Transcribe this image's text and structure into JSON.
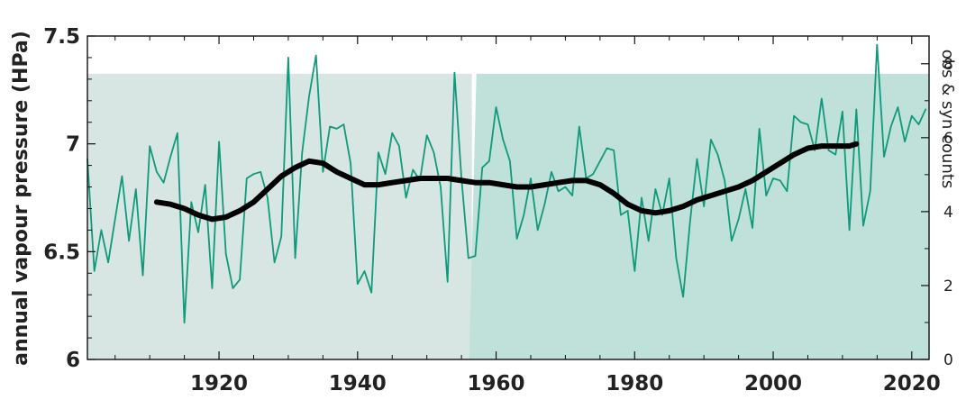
{
  "chart_data": {
    "type": "line",
    "xlabel": "",
    "ylabel": "annual vapour pressure (HPa)",
    "y2label": "obs & syn counts",
    "xlim": [
      1901,
      2022.5
    ],
    "ylim": [
      6,
      7.5
    ],
    "y2lim": [
      0,
      8.75
    ],
    "x_ticks": [
      1920,
      1940,
      1960,
      1980,
      2000,
      2020
    ],
    "y_ticks": [
      6,
      6.5,
      7,
      7.5
    ],
    "y_tick_labels": [
      "6",
      "6.5",
      "7",
      "7.5"
    ],
    "y2_ticks": [
      0,
      2,
      4,
      6,
      8
    ],
    "grid": false,
    "colors": {
      "annual": "#0f9a7b",
      "smooth": "#000000",
      "counts_early": "#d7e5e3",
      "counts_late": "#c0e0da"
    },
    "series": [
      {
        "name": "",
        "style": "thin-line",
        "x": [
          1901,
          1902,
          1903,
          1904,
          1905,
          1906,
          1907,
          1908,
          1909,
          1910,
          1911,
          1912,
          1913,
          1914,
          1915,
          1916,
          1917,
          1918,
          1919,
          1920,
          1921,
          1922,
          1923,
          1924,
          1925,
          1926,
          1927,
          1928,
          1929,
          1930,
          1931,
          1932,
          1933,
          1934,
          1935,
          1936,
          1937,
          1938,
          1939,
          1940,
          1941,
          1942,
          1943,
          1944,
          1945,
          1946,
          1947,
          1948,
          1949,
          1950,
          1951,
          1952,
          1953,
          1954,
          1955,
          1956,
          1957,
          1958,
          1959,
          1960,
          1961,
          1962,
          1963,
          1964,
          1965,
          1966,
          1967,
          1968,
          1969,
          1970,
          1971,
          1972,
          1973,
          1974,
          1975,
          1976,
          1977,
          1978,
          1979,
          1980,
          1981,
          1982,
          1983,
          1984,
          1985,
          1986,
          1987,
          1988,
          1989,
          1990,
          1991,
          1992,
          1993,
          1994,
          1995,
          1996,
          1997,
          1998,
          1999,
          2000,
          2001,
          2002,
          2003,
          2004,
          2005,
          2006,
          2007,
          2008,
          2009,
          2010,
          2011,
          2012,
          2013,
          2014,
          2015,
          2016,
          2017,
          2018,
          2019,
          2020,
          2021,
          2022
        ],
        "values": [
          6.93,
          6.41,
          6.6,
          6.45,
          6.65,
          6.85,
          6.55,
          6.79,
          6.39,
          6.99,
          6.87,
          6.82,
          6.94,
          7.05,
          6.17,
          6.73,
          6.59,
          6.81,
          6.33,
          7.01,
          6.49,
          6.33,
          6.37,
          6.84,
          6.86,
          6.87,
          6.75,
          6.45,
          6.57,
          7.4,
          6.47,
          6.96,
          7.22,
          7.41,
          6.87,
          7.08,
          7.07,
          7.09,
          6.91,
          6.35,
          6.41,
          6.31,
          6.96,
          6.86,
          7.05,
          6.99,
          6.75,
          6.88,
          6.83,
          7.04,
          6.96,
          6.8,
          6.36,
          7.33,
          6.84,
          6.47,
          6.48,
          6.89,
          6.92,
          7.17,
          7.02,
          6.92,
          6.56,
          6.67,
          6.84,
          6.6,
          6.72,
          6.87,
          6.78,
          6.8,
          6.76,
          7.08,
          6.84,
          6.86,
          6.92,
          6.98,
          6.97,
          6.67,
          6.69,
          6.41,
          6.75,
          6.55,
          6.79,
          6.67,
          6.84,
          6.47,
          6.29,
          6.64,
          6.93,
          6.71,
          7.02,
          6.95,
          6.83,
          6.55,
          6.65,
          6.79,
          6.61,
          7.07,
          6.76,
          6.84,
          6.83,
          6.78,
          7.13,
          7.1,
          7.09,
          6.97,
          7.21,
          6.97,
          6.95,
          7.15,
          6.6,
          7.16,
          6.62,
          6.78,
          7.46,
          6.94,
          7.08,
          7.17,
          7.01,
          7.13,
          7.09,
          7.16
        ]
      },
      {
        "name": "",
        "style": "thick-smooth",
        "x": [
          1911,
          1913,
          1915,
          1917,
          1919,
          1921,
          1923,
          1925,
          1927,
          1929,
          1931,
          1933,
          1935,
          1937,
          1939,
          1941,
          1943,
          1945,
          1947,
          1949,
          1951,
          1953,
          1955,
          1957,
          1959,
          1961,
          1963,
          1965,
          1967,
          1969,
          1971,
          1973,
          1975,
          1977,
          1979,
          1981,
          1983,
          1985,
          1987,
          1989,
          1991,
          1993,
          1995,
          1997,
          1999,
          2001,
          2003,
          2005,
          2007,
          2009,
          2011,
          2012
        ],
        "values": [
          6.73,
          6.72,
          6.7,
          6.67,
          6.65,
          6.66,
          6.69,
          6.73,
          6.79,
          6.85,
          6.89,
          6.92,
          6.91,
          6.87,
          6.84,
          6.81,
          6.81,
          6.82,
          6.83,
          6.84,
          6.84,
          6.84,
          6.83,
          6.82,
          6.82,
          6.81,
          6.8,
          6.8,
          6.81,
          6.82,
          6.83,
          6.83,
          6.81,
          6.77,
          6.72,
          6.69,
          6.68,
          6.69,
          6.71,
          6.74,
          6.76,
          6.78,
          6.8,
          6.83,
          6.87,
          6.91,
          6.95,
          6.98,
          6.99,
          6.99,
          6.99,
          7.0
        ]
      }
    ],
    "counts": {
      "name": "",
      "axis": "right",
      "segments": [
        {
          "x": [
            1901,
            1956.5
          ],
          "value": 7.73
        },
        {
          "x": [
            1956.5,
            2022.5
          ],
          "value": 7.73
        }
      ]
    }
  }
}
